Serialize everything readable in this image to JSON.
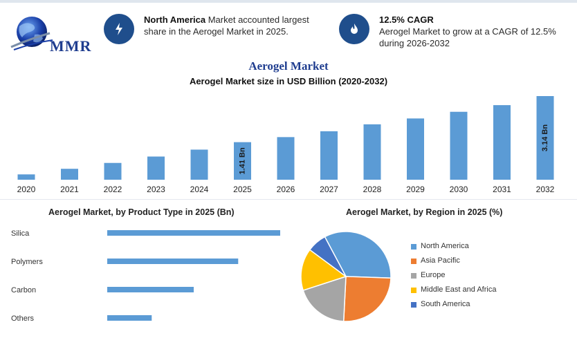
{
  "header": {
    "logo_text": "MMR",
    "info1": {
      "bold": "North America",
      "text": " Market accounted largest share in the Aerogel Market in 2025.",
      "icon": "bolt-icon"
    },
    "info2": {
      "bold": "12.5% CAGR",
      "text": "Aerogel Market to grow at a CAGR of 12.5% during 2026-2032",
      "icon": "flame-icon"
    }
  },
  "colors": {
    "bar": "#5b9bd5",
    "navy": "#1f4e8c",
    "title": "#1f3d8f"
  },
  "main_title": "Aerogel Market",
  "chart_data": [
    {
      "type": "bar",
      "title": "Aerogel Market size in USD Billion (2020-2032)",
      "categories": [
        "2020",
        "2021",
        "2022",
        "2023",
        "2024",
        "2025",
        "2026",
        "2027",
        "2028",
        "2029",
        "2030",
        "2031",
        "2032"
      ],
      "values": [
        0.2,
        0.41,
        0.63,
        0.87,
        1.13,
        1.41,
        1.6,
        1.82,
        2.08,
        2.3,
        2.55,
        2.8,
        3.14
      ],
      "data_labels": {
        "5": "1.41 Bn",
        "12": "3.14 Bn"
      },
      "ylim": [
        0,
        3.14
      ]
    },
    {
      "type": "bar",
      "orientation": "horizontal",
      "title": "Aerogel Market, by Product Type in 2025 (Bn)",
      "categories": [
        "Silica",
        "Polymers",
        "Carbon",
        "Others"
      ],
      "values": [
        0.7,
        0.53,
        0.35,
        0.18
      ],
      "xlim": [
        0,
        0.7
      ]
    },
    {
      "type": "pie",
      "title": "Aerogel Market, by Region in 2025 (%)",
      "categories": [
        "North America",
        "Asia Pacific",
        "Europe",
        "Middle East and Africa",
        "South America"
      ],
      "values": [
        33,
        25,
        19,
        15,
        7
      ],
      "colors": [
        "#5b9bd5",
        "#ed7d31",
        "#a5a5a5",
        "#ffc000",
        "#4472c4"
      ],
      "legend": "right"
    }
  ]
}
